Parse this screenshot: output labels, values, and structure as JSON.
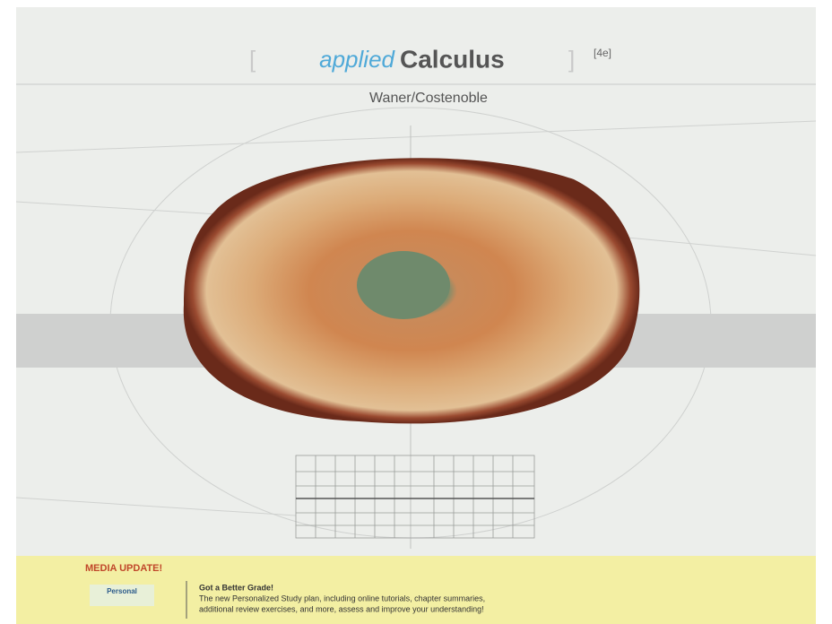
{
  "cover": {
    "title_prefix": "applied",
    "title": "Calculus",
    "edition": "[4e]",
    "authors": "Waner/Costenoble",
    "banner": {
      "heading": "MEDIA UPDATE!",
      "logo": "Personal",
      "line1": "Got a Better Grade!",
      "line2": "The new Personalized Study plan, including online tutorials, chapter summaries,",
      "line3": "additional review exercises, and more, assess and improve your understanding!"
    }
  }
}
